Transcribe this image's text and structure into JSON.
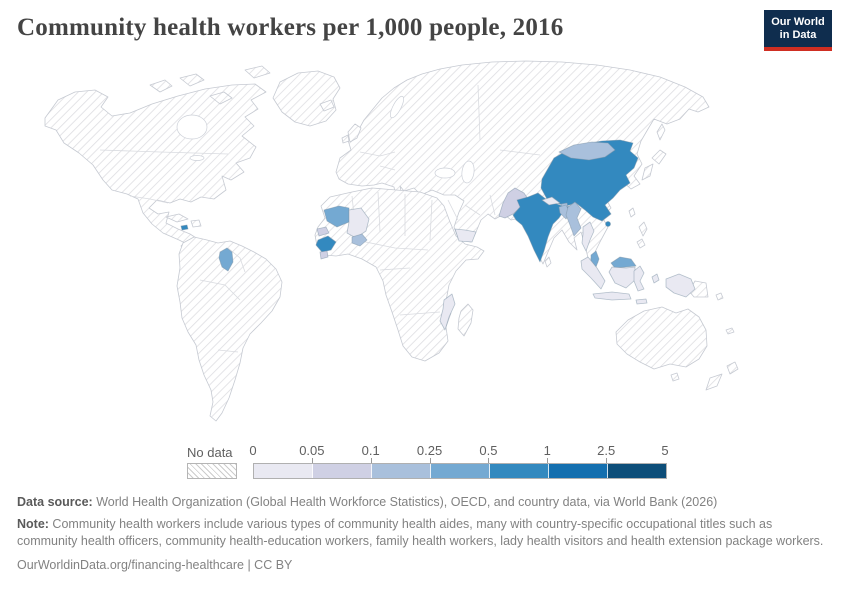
{
  "header": {
    "title": "Community health workers per 1,000 people, 2016",
    "logo": {
      "line1": "Our World",
      "line2": "in Data",
      "bg": "#0f2d4e",
      "accent": "#cf2e22"
    }
  },
  "legend": {
    "no_data_label": "No data",
    "ticks": [
      "0",
      "0.05",
      "0.1",
      "0.25",
      "0.5",
      "1",
      "2.5",
      "5"
    ],
    "colors": [
      "#e9e9f2",
      "#cfd0e4",
      "#a9c0dc",
      "#74a9d2",
      "#3389bf",
      "#146faf",
      "#0d4e79"
    ]
  },
  "footer": {
    "datasource_label": "Data source:",
    "datasource_text": " World Health Organization (Global Health Workforce Statistics), OECD, and country data, via World Bank (2026)",
    "note_label": "Note:",
    "note_text": " Community health workers include various types of community health aides, many with country-specific occupational titles such as community health officers, community health-education workers, family health workers, lady health visitors and health extension package workers.",
    "link": "OurWorldinData.org/financing-healthcare | CC BY"
  },
  "chart_data": {
    "type": "choropleth",
    "title": "Community health workers per 1,000 people, 2016",
    "unit": "community health workers per 1,000 people",
    "year": 2016,
    "legend_position": "bottom",
    "bins": [
      "0–0.05",
      "0.05–0.1",
      "0.1–0.25",
      "0.25–0.5",
      "0.5–1",
      "1–2.5",
      "2.5–5"
    ],
    "bin_colors": [
      "#e9e9f2",
      "#cfd0e4",
      "#a9c0dc",
      "#74a9d2",
      "#3389bf",
      "#146faf",
      "#0d4e79"
    ],
    "no_data_style": "diagonal-hatch",
    "countries": [
      {
        "name": "China",
        "value_bin": "0.5–1"
      },
      {
        "name": "India",
        "value_bin": "0.5–1"
      },
      {
        "name": "Guinea",
        "value_bin": "0.5–1"
      },
      {
        "name": "Jamaica",
        "value_bin": "0.5–1"
      },
      {
        "name": "Mauritania",
        "value_bin": "0.25–0.5"
      },
      {
        "name": "Guyana",
        "value_bin": "0.25–0.5"
      },
      {
        "name": "Malaysia",
        "value_bin": "0.25–0.5"
      },
      {
        "name": "Mongolia",
        "value_bin": "0.1–0.25"
      },
      {
        "name": "Myanmar",
        "value_bin": "0.1–0.25"
      },
      {
        "name": "Bangladesh",
        "value_bin": "0.1–0.25"
      },
      {
        "name": "Bhutan",
        "value_bin": "0.1–0.25"
      },
      {
        "name": "Burkina Faso",
        "value_bin": "0.1–0.25"
      },
      {
        "name": "Pakistan",
        "value_bin": "0.05–0.1"
      },
      {
        "name": "Senegal",
        "value_bin": "0.05–0.1"
      },
      {
        "name": "Sierra Leone",
        "value_bin": "0.05–0.1"
      },
      {
        "name": "Mali",
        "value_bin": "0–0.05"
      },
      {
        "name": "Nepal",
        "value_bin": "0–0.05"
      },
      {
        "name": "Thailand",
        "value_bin": "0–0.05"
      },
      {
        "name": "Indonesia",
        "value_bin": "0–0.05"
      },
      {
        "name": "Yemen",
        "value_bin": "0–0.05"
      },
      {
        "name": "Mozambique",
        "value_bin": "0–0.05"
      },
      {
        "name": "All other countries",
        "value_bin": "No data"
      }
    ]
  }
}
